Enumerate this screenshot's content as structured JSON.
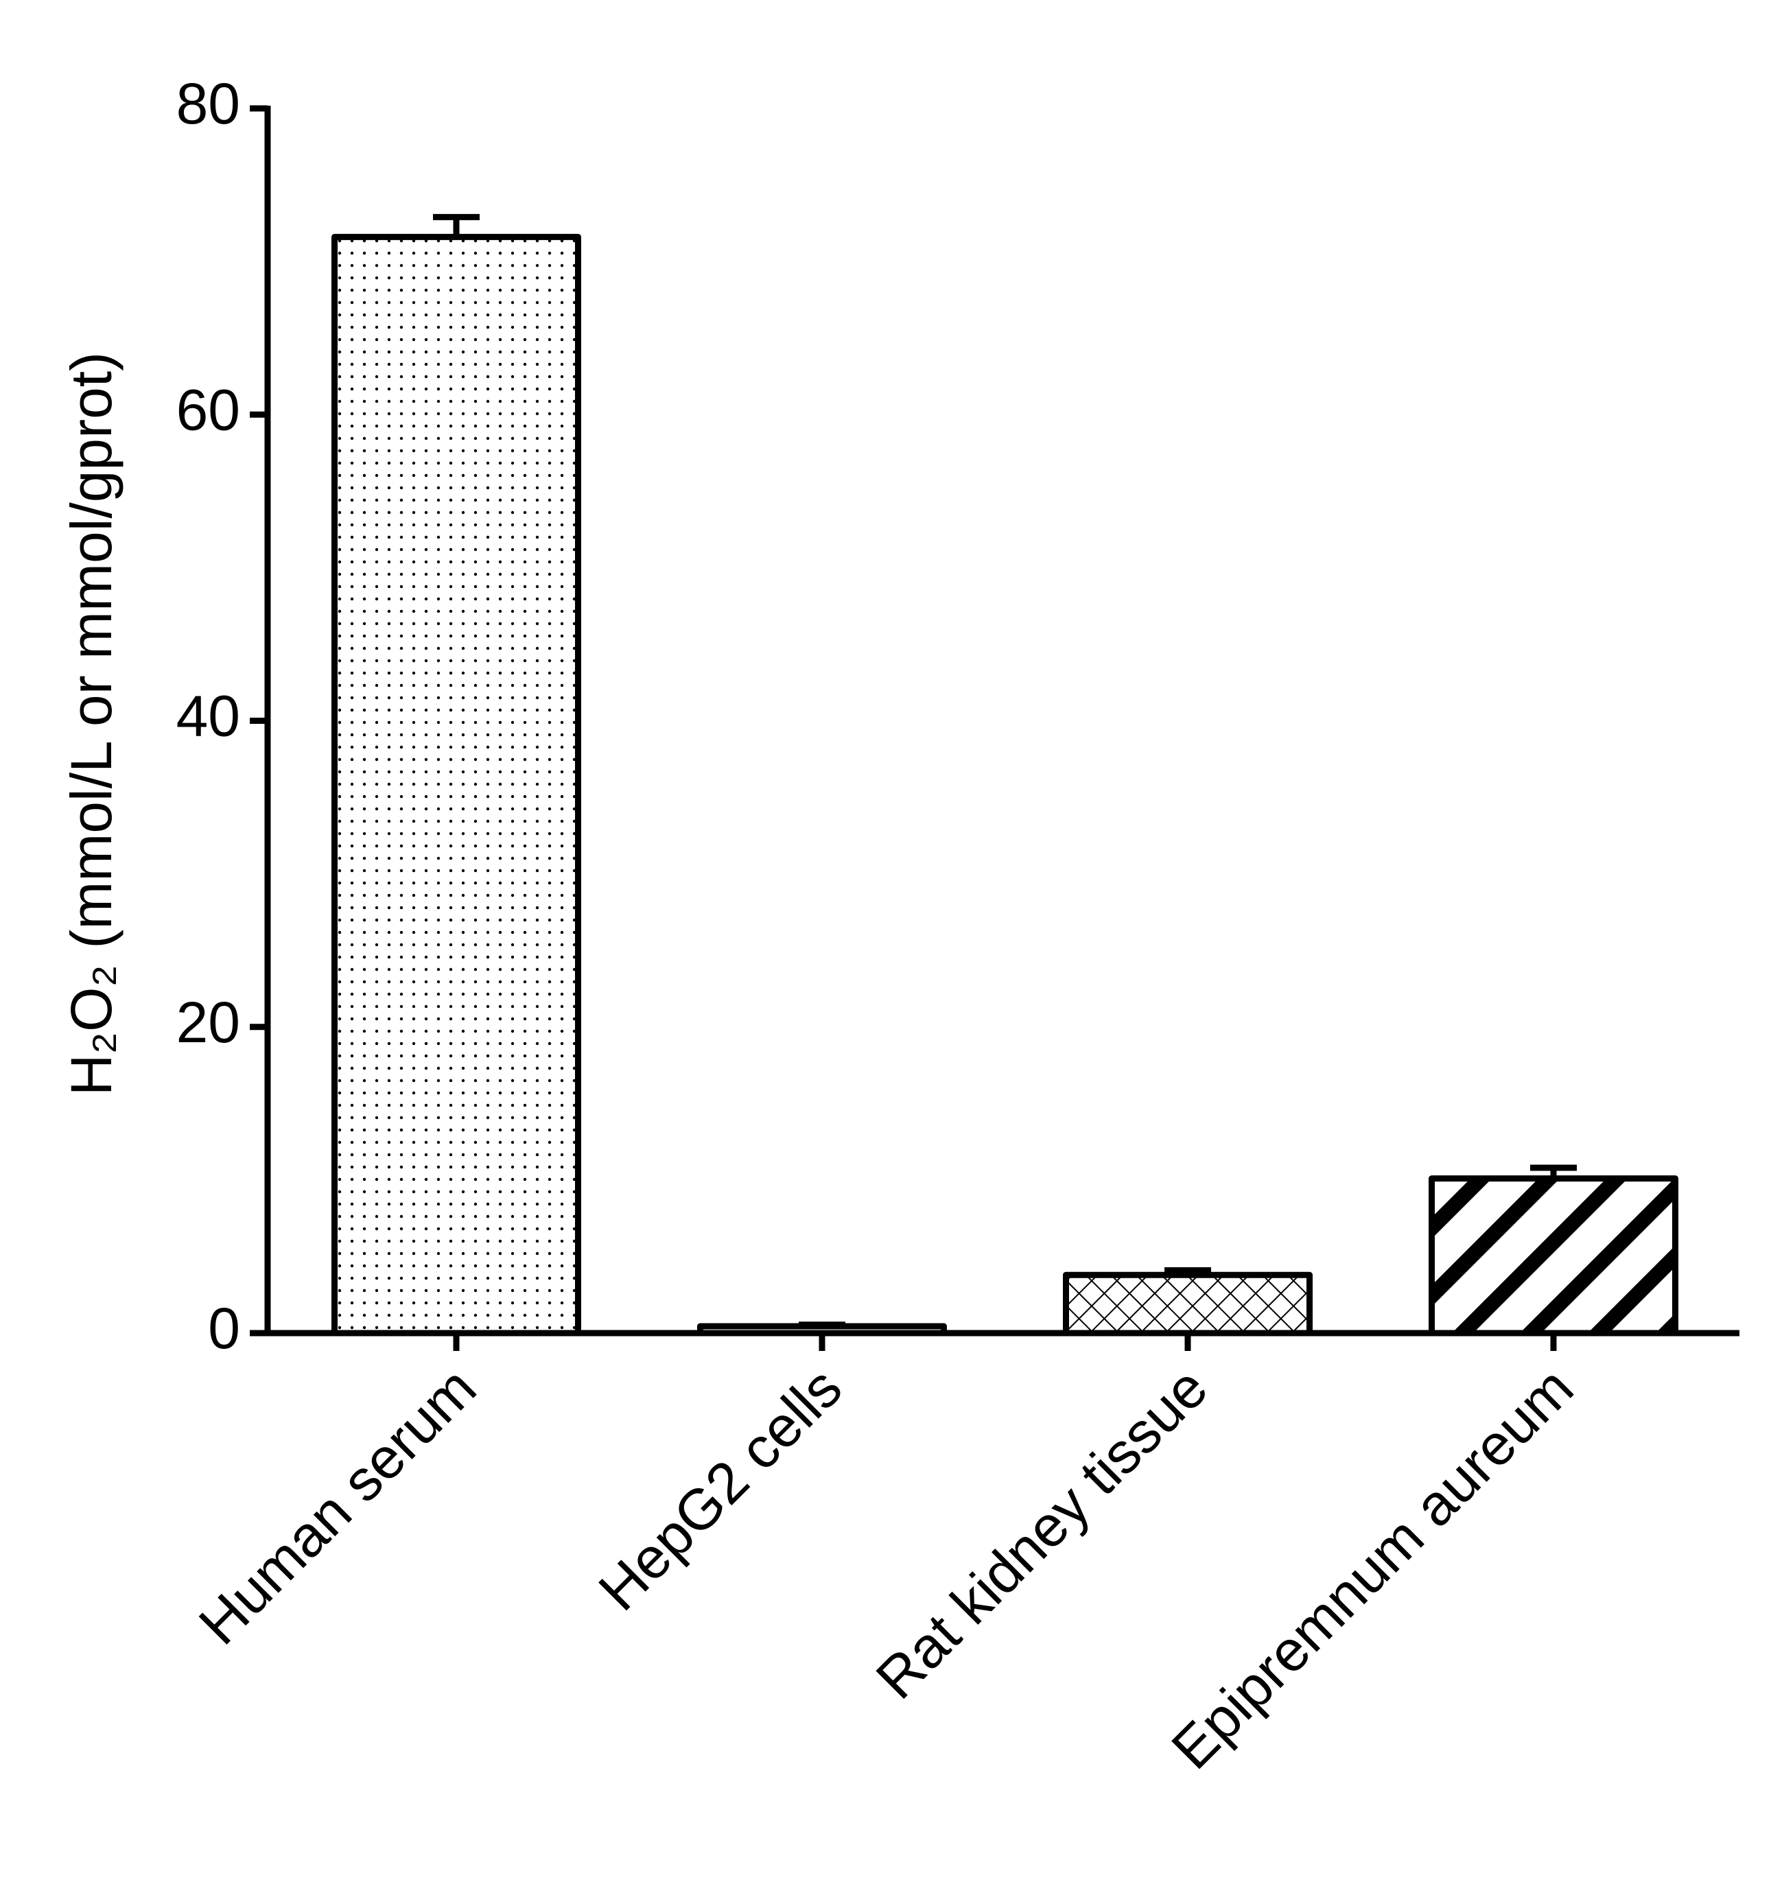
{
  "chart_data": {
    "type": "bar",
    "y_label": "H₂O₂ (mmol/L or mmol/gprot)",
    "categories": [
      "Human serum",
      "HepG2 cells",
      "Rat kidney tissue",
      "Epipremnum aureum"
    ],
    "values": [
      71.6,
      0.45,
      3.8,
      10.1
    ],
    "errors": [
      1.3,
      0.1,
      0.3,
      0.7
    ],
    "patterns": [
      "dots",
      "dots",
      "crosshatch",
      "diagonal"
    ],
    "color": "#000000",
    "ylim": [
      0,
      80
    ],
    "yticks": [
      0,
      20,
      40,
      60,
      80
    ],
    "grid": false
  }
}
